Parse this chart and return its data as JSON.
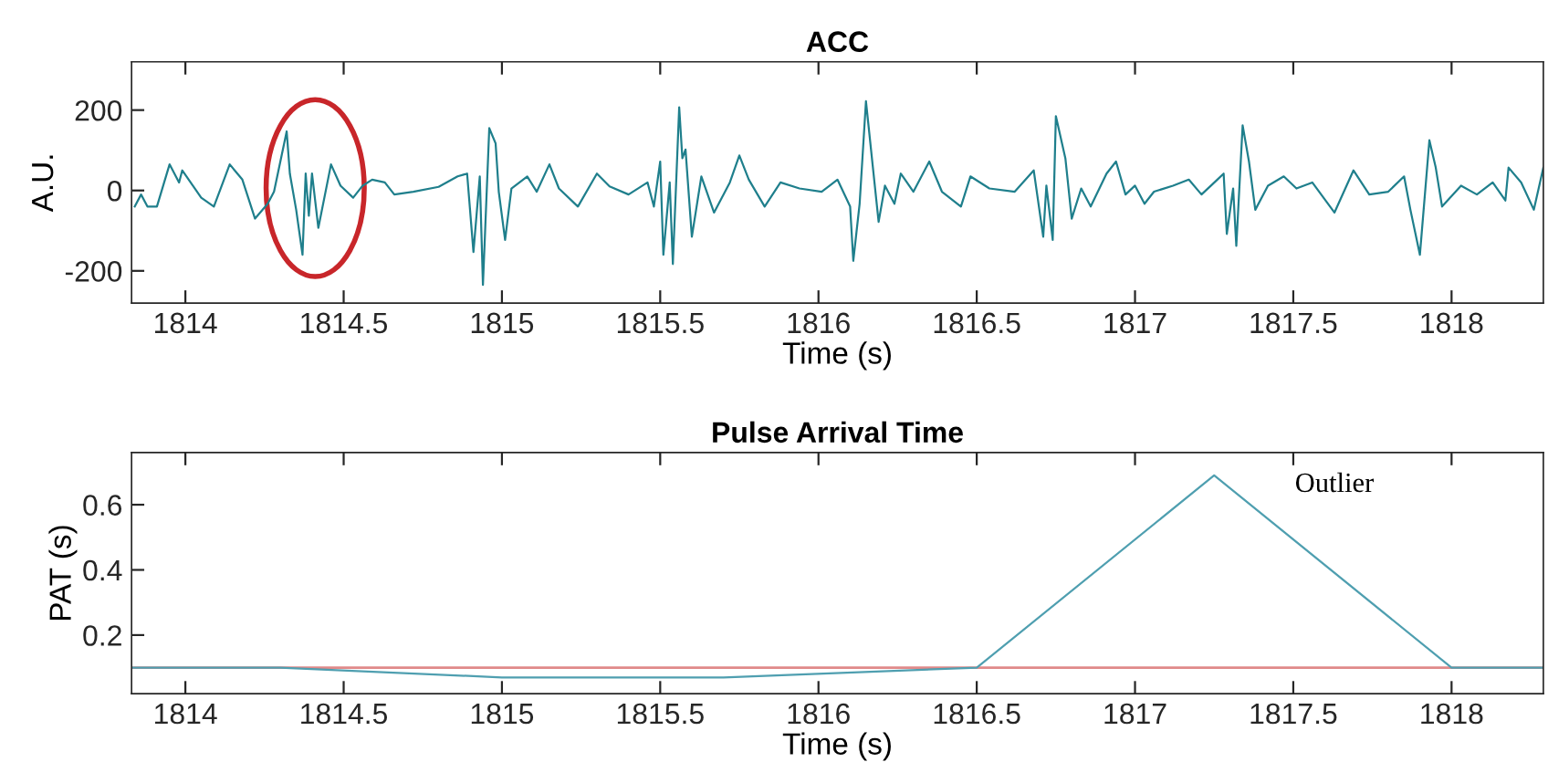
{
  "chart_data": [
    {
      "type": "line",
      "title": "ACC",
      "xlabel": "Time (s)",
      "ylabel": "A.U.",
      "xlim": [
        1813.83,
        1818.29
      ],
      "xticks": [
        1814,
        1814.5,
        1815,
        1815.5,
        1816,
        1816.5,
        1817,
        1817.5,
        1818
      ],
      "ylim": [
        -280,
        320
      ],
      "yticks": [
        -200,
        0,
        200
      ],
      "grid": false,
      "legend": false,
      "series": [
        {
          "color": "#1f7f8c",
          "x": [
            1813.84,
            1813.86,
            1813.88,
            1813.91,
            1813.95,
            1813.98,
            1813.99,
            1814.05,
            1814.09,
            1814.14,
            1814.18,
            1814.22,
            1814.26,
            1814.28,
            1814.32,
            1814.33,
            1814.35,
            1814.37,
            1814.38,
            1814.39,
            1814.4,
            1814.42,
            1814.46,
            1814.49,
            1814.53,
            1814.56,
            1814.59,
            1814.63,
            1814.66,
            1814.72,
            1814.8,
            1814.86,
            1814.89,
            1814.91,
            1814.93,
            1814.94,
            1814.96,
            1814.98,
            1814.99,
            1815.01,
            1815.03,
            1815.08,
            1815.11,
            1815.15,
            1815.18,
            1815.24,
            1815.3,
            1815.34,
            1815.4,
            1815.46,
            1815.48,
            1815.5,
            1815.51,
            1815.53,
            1815.54,
            1815.56,
            1815.57,
            1815.58,
            1815.6,
            1815.63,
            1815.67,
            1815.72,
            1815.75,
            1815.78,
            1815.83,
            1815.88,
            1815.94,
            1816.01,
            1816.06,
            1816.1,
            1816.11,
            1816.13,
            1816.15,
            1816.17,
            1816.19,
            1816.21,
            1816.24,
            1816.26,
            1816.3,
            1816.35,
            1816.39,
            1816.45,
            1816.48,
            1816.54,
            1816.62,
            1816.68,
            1816.71,
            1816.72,
            1816.74,
            1816.75,
            1816.78,
            1816.8,
            1816.83,
            1816.86,
            1816.91,
            1816.94,
            1816.97,
            1817.0,
            1817.03,
            1817.06,
            1817.12,
            1817.17,
            1817.21,
            1817.26,
            1817.28,
            1817.29,
            1817.31,
            1817.32,
            1817.34,
            1817.36,
            1817.38,
            1817.42,
            1817.47,
            1817.51,
            1817.56,
            1817.63,
            1817.69,
            1817.74,
            1817.8,
            1817.85,
            1817.87,
            1817.9,
            1817.93,
            1817.95,
            1817.97,
            1818.03,
            1818.08,
            1818.13,
            1818.17,
            1818.18,
            1818.22,
            1818.26,
            1818.29
          ],
          "values": [
            -40,
            -10,
            -40,
            -40,
            65,
            20,
            50,
            -18,
            -40,
            65,
            27,
            -70,
            -33,
            -3,
            147,
            42,
            -48,
            -160,
            42,
            -63,
            42,
            -93,
            65,
            12,
            -18,
            12,
            27,
            20,
            -10,
            -3,
            9,
            35,
            42,
            -153,
            35,
            -235,
            155,
            117,
            -3,
            -123,
            5,
            35,
            -3,
            65,
            5,
            -40,
            42,
            10,
            -10,
            20,
            -40,
            72,
            -160,
            20,
            -183,
            207,
            80,
            102,
            -115,
            35,
            -55,
            20,
            87,
            27,
            -40,
            20,
            5,
            -3,
            27,
            -40,
            -175,
            -33,
            222,
            72,
            -78,
            12,
            -33,
            42,
            -3,
            72,
            -3,
            -40,
            35,
            5,
            -3,
            50,
            -115,
            12,
            -123,
            185,
            80,
            -70,
            5,
            -40,
            42,
            72,
            -10,
            12,
            -33,
            -3,
            12,
            27,
            -10,
            27,
            42,
            -108,
            5,
            -138,
            162,
            72,
            -48,
            12,
            35,
            5,
            20,
            -55,
            50,
            -10,
            -3,
            35,
            -48,
            -160,
            125,
            57,
            -40,
            12,
            -10,
            20,
            -25,
            57,
            20,
            -48,
            57
          ]
        }
      ]
    },
    {
      "type": "line",
      "title": "Pulse Arrival Time",
      "xlabel": "Time (s)",
      "ylabel": "PAT (s)",
      "xlim": [
        1813.83,
        1818.29
      ],
      "xticks": [
        1814,
        1814.5,
        1815,
        1815.5,
        1816,
        1816.5,
        1817,
        1817.5,
        1818
      ],
      "ylim": [
        0.02,
        0.76
      ],
      "yticks": [
        0.2,
        0.4,
        0.6
      ],
      "grid": false,
      "legend": false,
      "series": [
        {
          "color": "#4f9fb0",
          "x": [
            1813.83,
            1814.3,
            1815.0,
            1815.7,
            1816.5,
            1817.25,
            1818.0,
            1818.29
          ],
          "values": [
            0.1,
            0.1,
            0.07,
            0.07,
            0.1,
            0.69,
            0.1,
            0.1
          ]
        }
      ],
      "ref_lines": [
        {
          "axis": "y",
          "value": 0.1,
          "color": "#e08a8a",
          "line_style": "solid"
        }
      ],
      "annotations": [
        "Outlier"
      ]
    }
  ]
}
